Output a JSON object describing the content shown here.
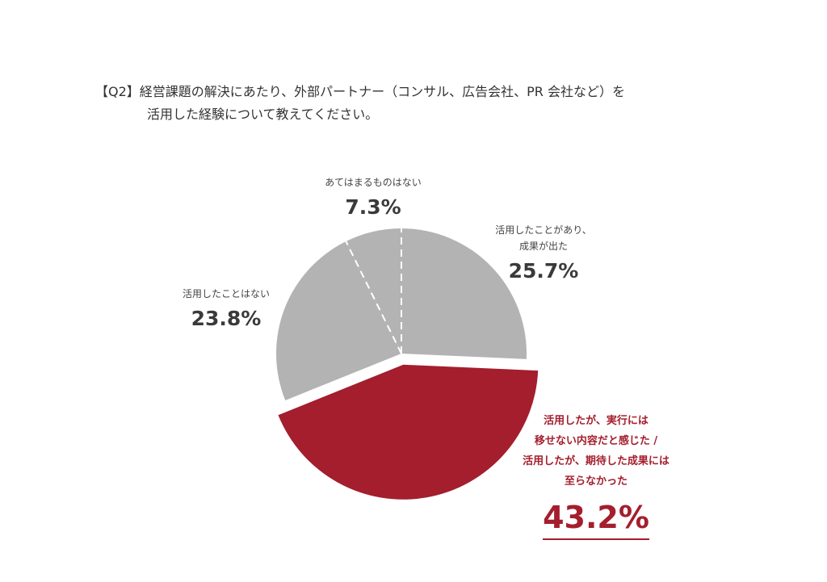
{
  "question": {
    "line1": "【Q2】経営課題の解決にあたり、外部パートナー（コンサル、広告会社、PR 会社など）を",
    "line2": "活用した経験について教えてください。"
  },
  "colors": {
    "gray": "#b3b3b3",
    "highlight": "#a41e2d"
  },
  "chart_data": {
    "type": "pie",
    "unit": "%",
    "slices": [
      {
        "label": "活用したことがあり、成果が出た",
        "label_lines": [
          "活用したことがあり、",
          "成果が出た"
        ],
        "value": 25.7,
        "display": "25.7%",
        "color": "#b3b3b3",
        "exploded": false
      },
      {
        "label": "活用したが、実行には移せない内容だと感じた / 活用したが、期待した成果には至らなかった",
        "label_lines": [
          "活用したが、実行には",
          "移せない内容だと感じた /",
          "活用したが、期待した成果には",
          "至らなかった"
        ],
        "value": 43.2,
        "display": "43.2%",
        "color": "#a41e2d",
        "exploded": true
      },
      {
        "label": "活用したことはない",
        "label_lines": [
          "活用したことはない"
        ],
        "value": 23.8,
        "display": "23.8%",
        "color": "#b3b3b3",
        "exploded": false
      },
      {
        "label": "あてはまるものはない",
        "label_lines": [
          "あてはまるものはない"
        ],
        "value": 7.3,
        "display": "7.3%",
        "color": "#b3b3b3",
        "exploded": false
      }
    ]
  }
}
